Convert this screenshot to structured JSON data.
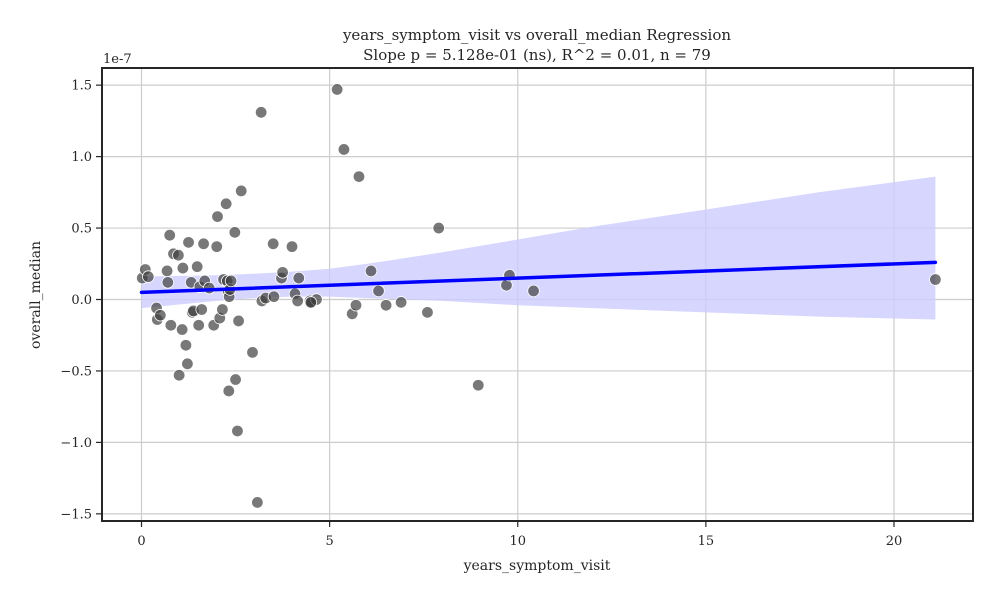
{
  "chart_data": {
    "type": "scatter",
    "title": "years_symptom_visit vs overall_median Regression",
    "subtitle": "Slope p = 5.128e-01 (ns), R^2 = 0.01, n = 79",
    "xlabel": "years_symptom_visit",
    "ylabel": "overall_median",
    "y_offset_label": "1e-7",
    "xlim": [
      -1.05,
      22.1
    ],
    "ylim": [
      -1.55,
      1.62
    ],
    "x_ticks": [
      0,
      5,
      10,
      15,
      20
    ],
    "x_tick_labels": [
      "0",
      "5",
      "10",
      "15",
      "20"
    ],
    "y_ticks": [
      -1.5,
      -1.0,
      -0.5,
      0.0,
      0.5,
      1.0,
      1.5
    ],
    "y_tick_labels": [
      "−1.5",
      "−1.0",
      "−0.5",
      "0.0",
      "0.5",
      "1.0",
      "1.5"
    ],
    "grid": true,
    "colors": {
      "points": "#3f3f3f",
      "regression_line": "#0000ff",
      "confidence_band": "#ccccff"
    },
    "points": [
      [
        0.02,
        0.15
      ],
      [
        0.1,
        0.21
      ],
      [
        0.18,
        0.16
      ],
      [
        0.4,
        -0.06
      ],
      [
        0.42,
        -0.14
      ],
      [
        0.5,
        -0.11
      ],
      [
        0.68,
        0.2
      ],
      [
        0.7,
        0.12
      ],
      [
        0.75,
        0.45
      ],
      [
        0.78,
        -0.18
      ],
      [
        0.85,
        0.32
      ],
      [
        0.98,
        0.31
      ],
      [
        1.0,
        -0.53
      ],
      [
        1.08,
        -0.21
      ],
      [
        1.1,
        0.22
      ],
      [
        1.18,
        -0.32
      ],
      [
        1.22,
        -0.45
      ],
      [
        1.25,
        0.4
      ],
      [
        1.32,
        0.12
      ],
      [
        1.35,
        -0.09
      ],
      [
        1.38,
        -0.08
      ],
      [
        1.48,
        0.23
      ],
      [
        1.52,
        -0.18
      ],
      [
        1.55,
        0.09
      ],
      [
        1.6,
        -0.07
      ],
      [
        1.65,
        0.39
      ],
      [
        1.68,
        0.13
      ],
      [
        1.8,
        0.08
      ],
      [
        1.92,
        -0.18
      ],
      [
        2.0,
        0.37
      ],
      [
        2.02,
        0.58
      ],
      [
        2.08,
        -0.13
      ],
      [
        2.15,
        -0.07
      ],
      [
        2.18,
        0.14
      ],
      [
        2.25,
        0.67
      ],
      [
        2.28,
        0.13
      ],
      [
        2.3,
        0.06
      ],
      [
        2.32,
        -0.64
      ],
      [
        2.33,
        0.02
      ],
      [
        2.35,
        0.07
      ],
      [
        2.38,
        0.13
      ],
      [
        2.48,
        0.47
      ],
      [
        2.5,
        -0.56
      ],
      [
        2.55,
        -0.92
      ],
      [
        2.58,
        -0.15
      ],
      [
        2.65,
        0.76
      ],
      [
        2.95,
        -0.37
      ],
      [
        3.08,
        -1.42
      ],
      [
        3.18,
        1.31
      ],
      [
        3.2,
        -0.01
      ],
      [
        3.3,
        0.01
      ],
      [
        3.5,
        0.39
      ],
      [
        3.52,
        0.02
      ],
      [
        3.72,
        0.15
      ],
      [
        3.75,
        0.19
      ],
      [
        4.0,
        0.37
      ],
      [
        4.08,
        0.04
      ],
      [
        4.15,
        -0.01
      ],
      [
        4.18,
        0.15
      ],
      [
        4.48,
        -0.01
      ],
      [
        4.52,
        -0.02
      ],
      [
        4.65,
        0.0
      ],
      [
        5.2,
        1.47
      ],
      [
        5.38,
        1.05
      ],
      [
        5.6,
        -0.1
      ],
      [
        5.7,
        -0.04
      ],
      [
        5.78,
        0.86
      ],
      [
        6.1,
        0.2
      ],
      [
        6.3,
        0.06
      ],
      [
        6.5,
        -0.04
      ],
      [
        6.9,
        -0.02
      ],
      [
        7.6,
        -0.09
      ],
      [
        7.9,
        0.5
      ],
      [
        8.95,
        -0.6
      ],
      [
        9.7,
        0.1
      ],
      [
        9.78,
        0.17
      ],
      [
        10.42,
        0.06
      ],
      [
        21.1,
        0.14
      ],
      [
        4.5,
        -0.02
      ]
    ],
    "regression_line": [
      [
        0.0,
        0.05
      ],
      [
        21.1,
        0.26
      ]
    ],
    "confidence_band": {
      "x": [
        0.0,
        1.0,
        2.0,
        3.0,
        4.0,
        5.0,
        6.0,
        8.0,
        10.0,
        12.0,
        15.0,
        18.0,
        21.1
      ],
      "upper": [
        0.16,
        0.165,
        0.17,
        0.18,
        0.195,
        0.215,
        0.25,
        0.33,
        0.42,
        0.51,
        0.63,
        0.75,
        0.86
      ],
      "lower": [
        -0.06,
        -0.035,
        -0.01,
        0.01,
        0.02,
        0.02,
        0.01,
        -0.01,
        -0.04,
        -0.06,
        -0.09,
        -0.12,
        -0.14
      ]
    }
  }
}
